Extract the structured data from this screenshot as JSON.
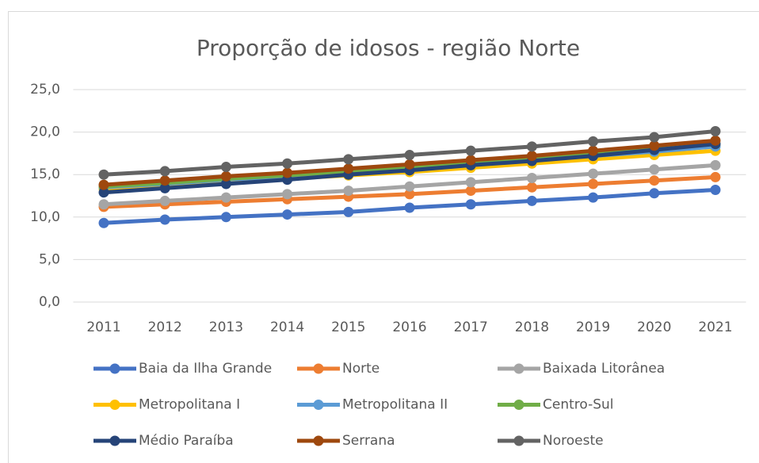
{
  "chart_data": {
    "type": "line",
    "title": "Proporção de idosos - região Norte",
    "categories": [
      "2011",
      "2012",
      "2013",
      "2014",
      "2015",
      "2016",
      "2017",
      "2018",
      "2019",
      "2020",
      "2021"
    ],
    "ylim": [
      0,
      25
    ],
    "yticks": [
      {
        "value": 0,
        "label": "0,0"
      },
      {
        "value": 5,
        "label": "5,0"
      },
      {
        "value": 10,
        "label": "10,0"
      },
      {
        "value": 15,
        "label": "15,0"
      },
      {
        "value": 20,
        "label": "20,0"
      },
      {
        "value": 25,
        "label": "25,0"
      }
    ],
    "grid": true,
    "legend": "bottom",
    "series": [
      {
        "name": "Baia da Ilha Grande",
        "color": "#4472c4",
        "values": [
          9.3,
          9.7,
          10.0,
          10.3,
          10.6,
          11.1,
          11.5,
          11.9,
          12.3,
          12.8,
          13.2
        ]
      },
      {
        "name": "Norte",
        "color": "#ed7d31",
        "values": [
          11.2,
          11.5,
          11.8,
          12.1,
          12.4,
          12.7,
          13.1,
          13.5,
          13.9,
          14.3,
          14.7
        ]
      },
      {
        "name": "Baixada Litorânea",
        "color": "#a5a5a5",
        "values": [
          11.5,
          11.9,
          12.3,
          12.7,
          13.1,
          13.6,
          14.1,
          14.6,
          15.1,
          15.6,
          16.1
        ]
      },
      {
        "name": "Metropolitana I",
        "color": "#ffc000",
        "values": [
          13.3,
          13.7,
          14.1,
          14.5,
          14.9,
          15.3,
          15.8,
          16.3,
          16.8,
          17.3,
          17.8
        ]
      },
      {
        "name": "Metropolitana II",
        "color": "#5b9bd5",
        "values": [
          13.5,
          13.9,
          14.4,
          14.8,
          15.2,
          15.7,
          16.2,
          16.7,
          17.2,
          17.7,
          18.3
        ]
      },
      {
        "name": "Centro-Sul",
        "color": "#70ad47",
        "values": [
          13.6,
          14.0,
          14.5,
          14.9,
          15.4,
          15.9,
          16.4,
          16.9,
          17.4,
          18.0,
          18.6
        ]
      },
      {
        "name": "Médio Paraíba",
        "color": "#264478",
        "values": [
          12.9,
          13.4,
          13.9,
          14.4,
          15.0,
          15.5,
          16.1,
          16.6,
          17.2,
          17.9,
          18.6
        ]
      },
      {
        "name": "Serrana",
        "color": "#9e480e",
        "values": [
          13.8,
          14.3,
          14.8,
          15.2,
          15.7,
          16.2,
          16.7,
          17.2,
          17.8,
          18.4,
          19.0
        ]
      },
      {
        "name": "Noroeste",
        "color": "#636363",
        "values": [
          15.0,
          15.4,
          15.9,
          16.3,
          16.8,
          17.3,
          17.8,
          18.3,
          18.9,
          19.4,
          20.1
        ]
      }
    ]
  }
}
